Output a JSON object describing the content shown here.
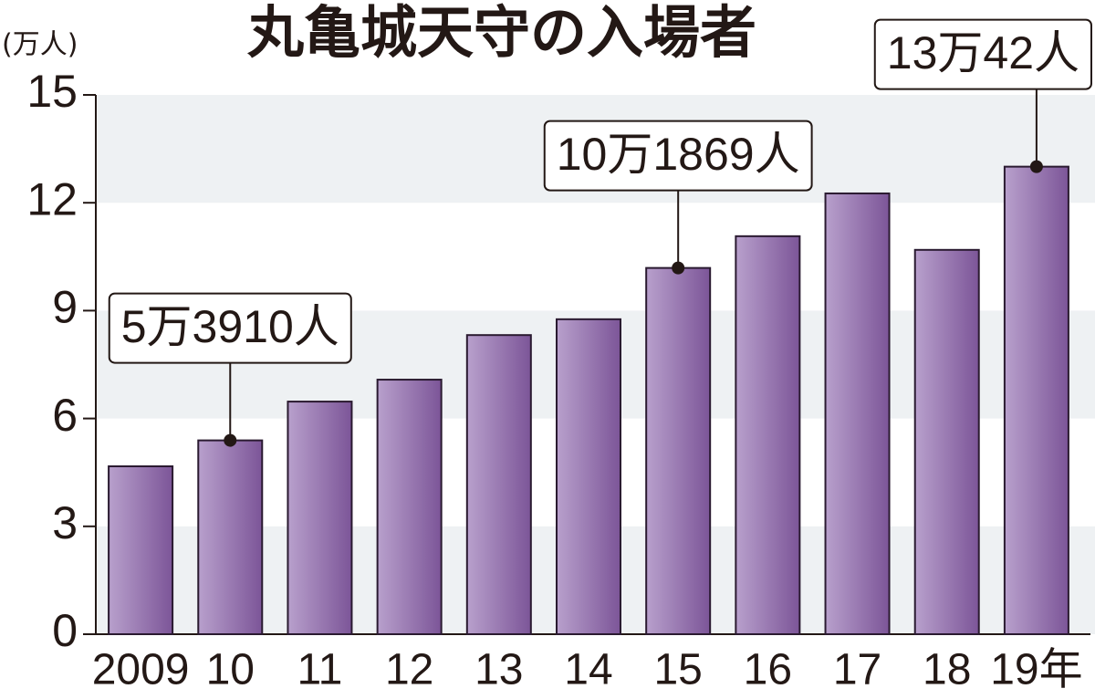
{
  "chart_data": {
    "type": "bar",
    "title": "丸亀城天守の入場者",
    "y_label": "(万人)",
    "categories": [
      "2009",
      "10",
      "11",
      "12",
      "13",
      "14",
      "15",
      "16",
      "17",
      "18",
      "19年"
    ],
    "values": [
      4.67,
      5.391,
      6.47,
      7.08,
      8.32,
      8.76,
      10.1869,
      11.07,
      12.26,
      10.69,
      13.0042
    ],
    "value_labels": [
      null,
      "5万3910人",
      null,
      null,
      null,
      null,
      "10万1869人",
      null,
      null,
      null,
      "13万42人"
    ],
    "color": "#8a64a8",
    "ylim": [
      0,
      15
    ],
    "yticks": [
      0,
      3,
      6,
      9,
      12,
      15
    ],
    "grid": true
  }
}
